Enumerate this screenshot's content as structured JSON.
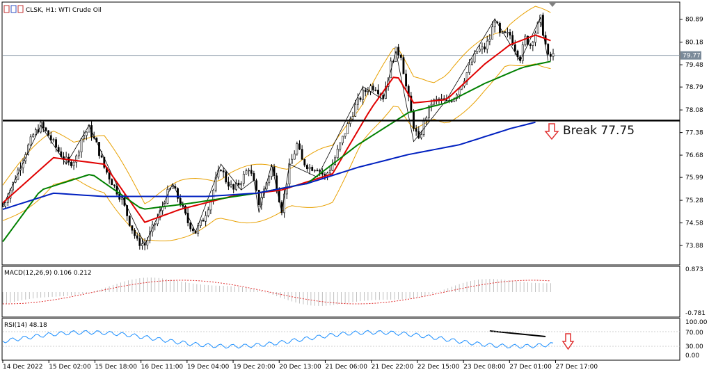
{
  "header": {
    "title": "CLSK, H1:  WTI Crude Oil"
  },
  "chart_data": {
    "type": "candlestick",
    "symbol": "CLSK",
    "timeframe": "H1",
    "instrument": "WTI Crude Oil",
    "price_axis": {
      "ticks": [
        "80.89",
        "80.18",
        "79.48",
        "78.79",
        "78.08",
        "77.38",
        "76.68",
        "75.99",
        "75.28",
        "74.58",
        "73.88"
      ],
      "current_price": "79.77",
      "ylim": [
        73.3,
        81.4
      ]
    },
    "time_axis": {
      "labels": [
        "14 Dec 2022",
        "15 Dec 02:00",
        "15 Dec 18:00",
        "16 Dec 11:00",
        "19 Dec 04:00",
        "19 Dec 20:00",
        "20 Dec 13:00",
        "21 Dec 06:00",
        "21 Dec 22:00",
        "22 Dec 15:00",
        "23 Dec 08:00",
        "27 Dec 01:00",
        "27 Dec 17:00"
      ]
    },
    "close_path": [
      [
        0,
        75.1
      ],
      [
        4,
        75.8
      ],
      [
        8,
        76.6
      ],
      [
        12,
        77.3
      ],
      [
        15,
        77.6
      ],
      [
        18,
        77.3
      ],
      [
        22,
        76.8
      ],
      [
        26,
        76.4
      ],
      [
        29,
        76.6
      ],
      [
        31,
        77.2
      ],
      [
        34,
        77.5
      ],
      [
        37,
        77.0
      ],
      [
        40,
        76.3
      ],
      [
        44,
        75.7
      ],
      [
        47,
        75.3
      ],
      [
        50,
        74.6
      ],
      [
        53,
        74.0
      ],
      [
        56,
        73.9
      ],
      [
        59,
        74.4
      ],
      [
        62,
        74.9
      ],
      [
        65,
        75.5
      ],
      [
        67,
        75.7
      ],
      [
        70,
        75.2
      ],
      [
        73,
        74.6
      ],
      [
        76,
        74.3
      ],
      [
        79,
        74.7
      ],
      [
        82,
        75.3
      ],
      [
        84,
        75.9
      ],
      [
        86,
        76.3
      ],
      [
        88,
        75.9
      ],
      [
        91,
        75.6
      ],
      [
        94,
        75.9
      ],
      [
        97,
        76.3
      ],
      [
        99,
        75.8
      ],
      [
        101,
        75.2
      ],
      [
        103,
        75.6
      ],
      [
        106,
        76.3
      ],
      [
        108,
        75.7
      ],
      [
        110,
        75.0
      ],
      [
        113,
        76.3
      ],
      [
        116,
        77.0
      ],
      [
        118,
        76.5
      ],
      [
        121,
        76.3
      ],
      [
        124,
        76.3
      ],
      [
        127,
        76.0
      ],
      [
        130,
        76.4
      ],
      [
        133,
        77.0
      ],
      [
        136,
        77.6
      ],
      [
        139,
        78.2
      ],
      [
        142,
        78.6
      ],
      [
        145,
        78.8
      ],
      [
        147,
        78.8
      ],
      [
        150,
        78.5
      ],
      [
        153,
        79.5
      ],
      [
        155,
        79.9
      ],
      [
        157,
        79.8
      ],
      [
        159,
        78.8
      ],
      [
        161,
        78.0
      ],
      [
        162,
        77.6
      ],
      [
        164,
        77.1
      ],
      [
        166,
        77.7
      ],
      [
        169,
        78.3
      ],
      [
        172,
        78.4
      ],
      [
        175,
        78.3
      ],
      [
        178,
        78.5
      ],
      [
        181,
        78.9
      ],
      [
        184,
        79.4
      ],
      [
        187,
        79.9
      ],
      [
        190,
        80.0
      ],
      [
        192,
        80.3
      ],
      [
        194,
        80.9
      ],
      [
        196,
        80.4
      ],
      [
        198,
        80.4
      ],
      [
        200,
        80.4
      ],
      [
        202,
        80.0
      ],
      [
        204,
        79.7
      ],
      [
        206,
        80.3
      ],
      [
        208,
        80.1
      ],
      [
        210,
        80.5
      ],
      [
        212,
        80.9
      ],
      [
        213,
        80.5
      ],
      [
        215,
        79.7
      ],
      [
        217,
        79.77
      ]
    ],
    "x_range": [
      0,
      217
    ],
    "indicators": {
      "moving_averages": [
        {
          "color": "#e00000",
          "values": [
            [
              0,
              75.2
            ],
            [
              20,
              76.6
            ],
            [
              40,
              76.4
            ],
            [
              56,
              74.6
            ],
            [
              70,
              75.0
            ],
            [
              90,
              75.4
            ],
            [
              110,
              75.6
            ],
            [
              130,
              76.1
            ],
            [
              145,
              78.1
            ],
            [
              155,
              79.2
            ],
            [
              162,
              78.3
            ],
            [
              175,
              78.4
            ],
            [
              190,
              79.5
            ],
            [
              200,
              80.1
            ],
            [
              210,
              80.4
            ],
            [
              217,
              80.2
            ]
          ]
        },
        {
          "color": "#008000",
          "values": [
            [
              0,
              74.0
            ],
            [
              15,
              75.6
            ],
            [
              35,
              76.1
            ],
            [
              55,
              75.0
            ],
            [
              75,
              75.2
            ],
            [
              100,
              75.5
            ],
            [
              120,
              75.8
            ],
            [
              140,
              77.0
            ],
            [
              160,
              78.0
            ],
            [
              175,
              78.3
            ],
            [
              190,
              78.9
            ],
            [
              205,
              79.4
            ],
            [
              217,
              79.6
            ]
          ]
        },
        {
          "color": "#0020c0",
          "values": [
            [
              0,
              75.0
            ],
            [
              20,
              75.5
            ],
            [
              40,
              75.4
            ],
            [
              60,
              75.4
            ],
            [
              80,
              75.4
            ],
            [
              100,
              75.5
            ],
            [
              120,
              75.8
            ],
            [
              140,
              76.3
            ],
            [
              160,
              76.7
            ],
            [
              180,
              77.0
            ],
            [
              200,
              77.5
            ],
            [
              210,
              77.7
            ]
          ]
        }
      ],
      "bollinger_color": "#e8a000",
      "horizontal_level": {
        "value": 77.75,
        "color": "#000000"
      },
      "annotation": {
        "text": "Break 77.75",
        "color": "#e03030"
      }
    },
    "macd": {
      "label": "MACD(12,26,9) 0.106 0.212",
      "axis": [
        "0.873",
        "-0.781"
      ],
      "signal_color": "#e03030",
      "histogram_color": "#b0b0b0"
    },
    "rsi": {
      "label": "RSI(14) 48.18",
      "axis": [
        "100.00",
        "70.00",
        "30.00",
        "0.00"
      ],
      "line_color": "#1e90ff"
    }
  }
}
